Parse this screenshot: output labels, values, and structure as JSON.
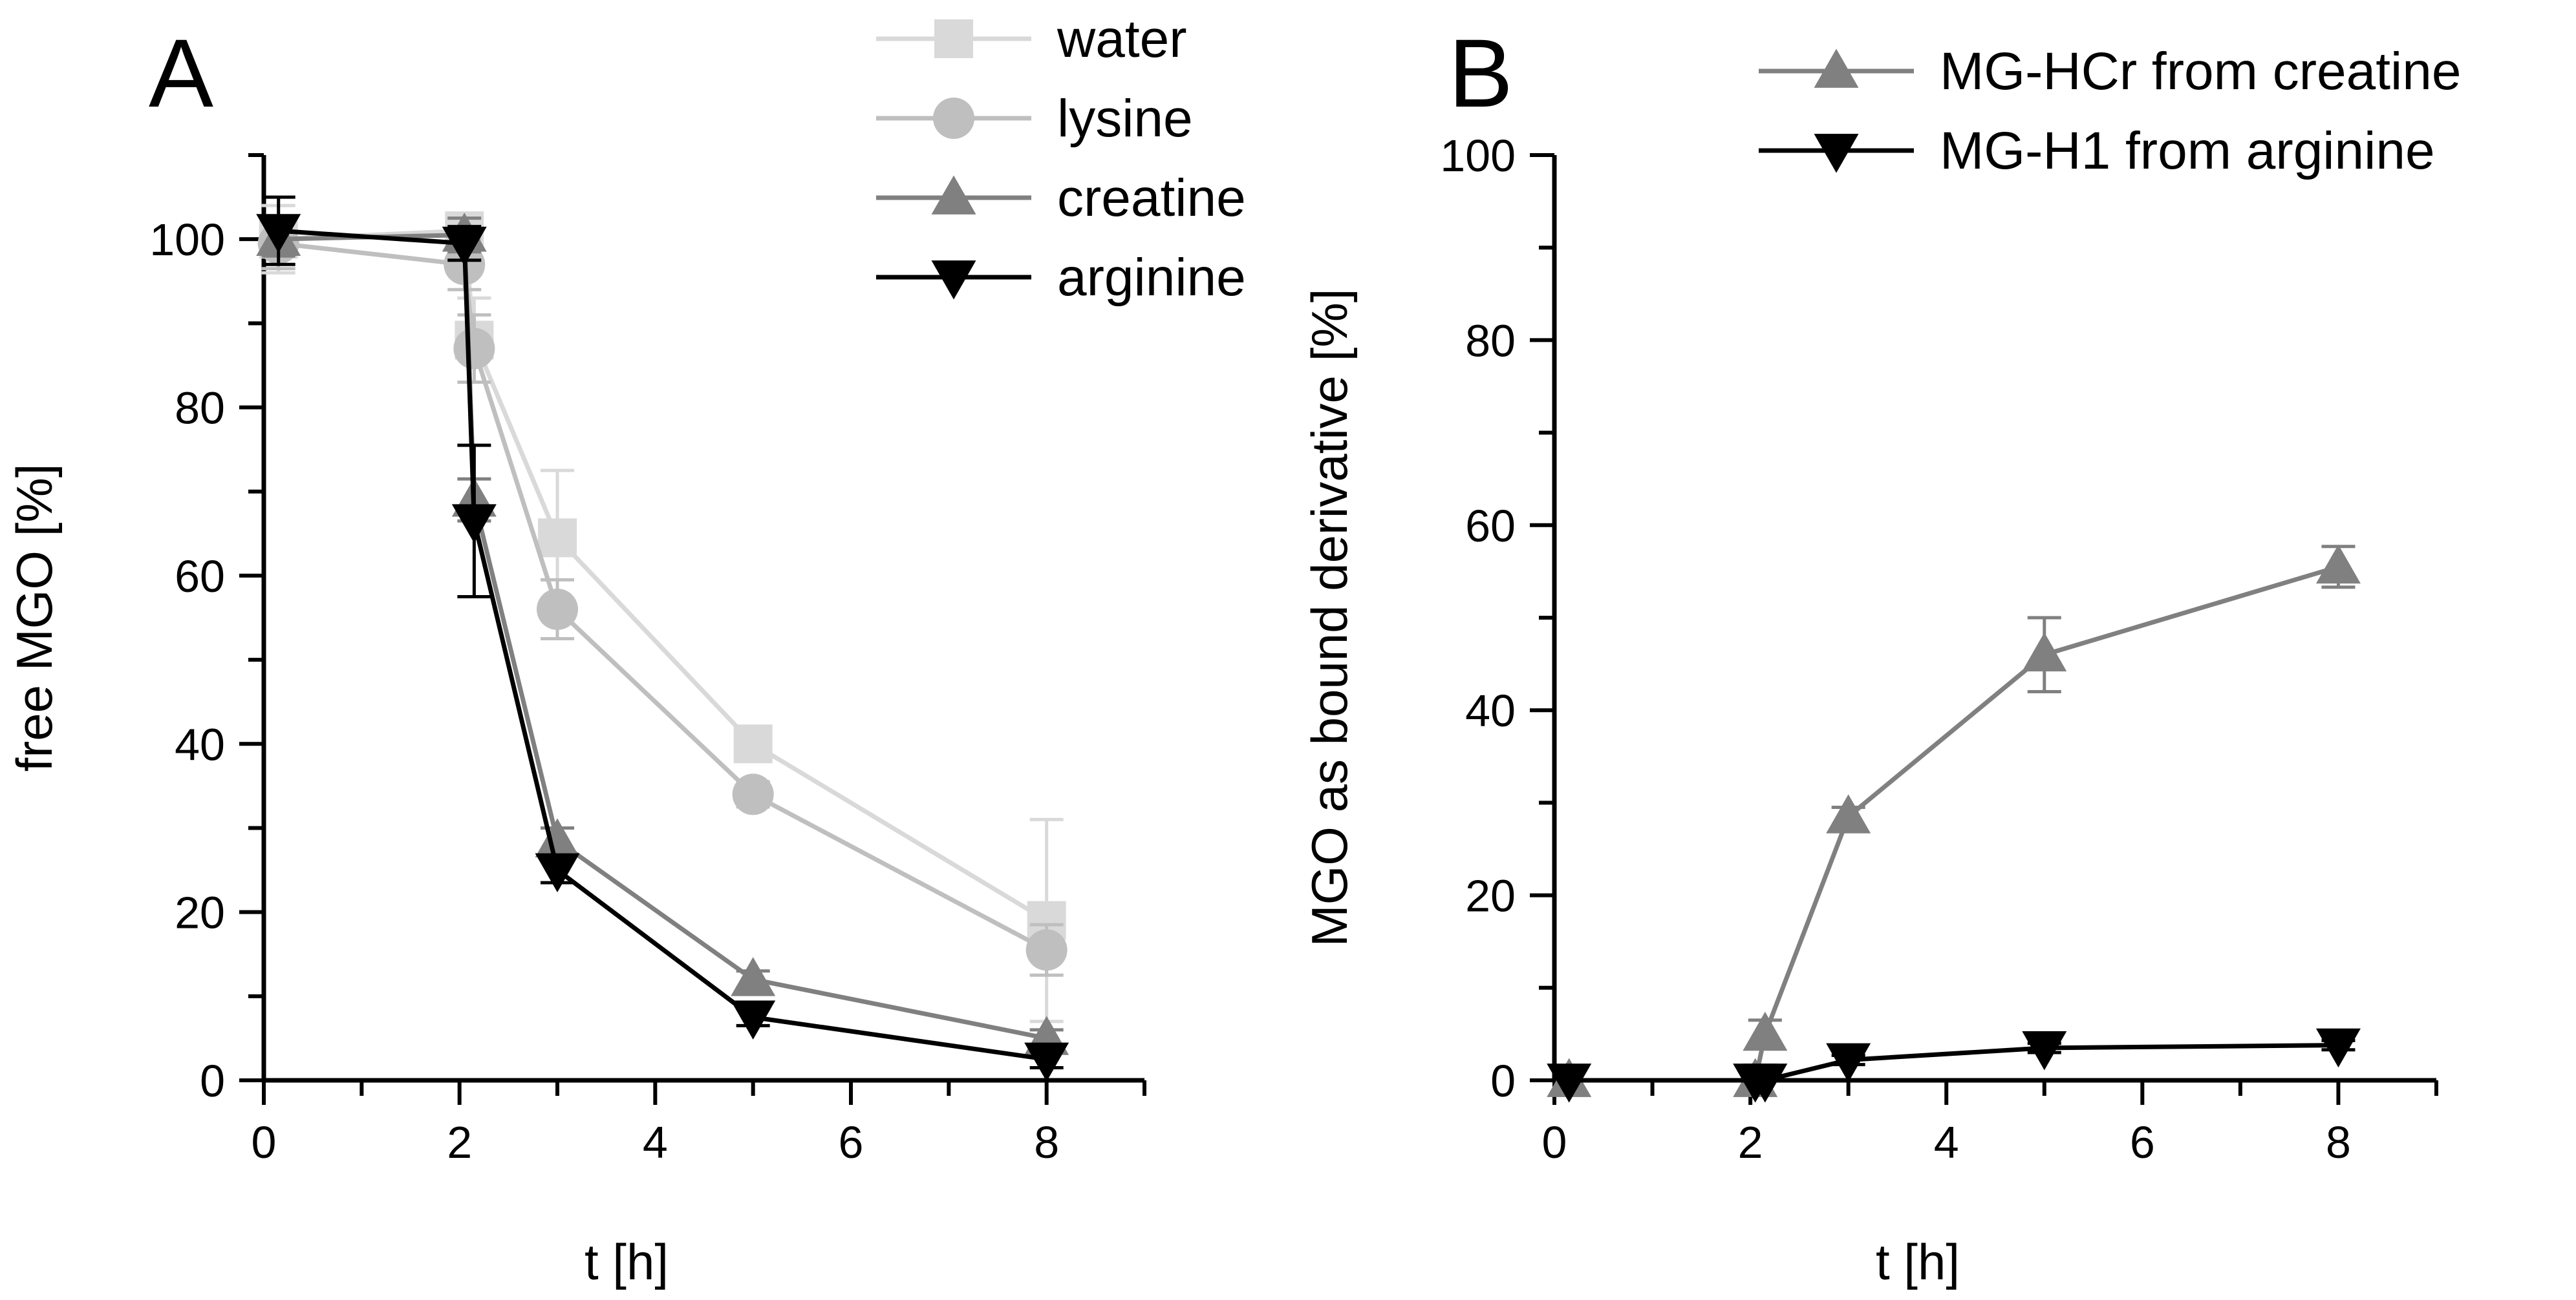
{
  "chart_data": [
    {
      "panel": "A",
      "type": "line",
      "xlabel": "t [h]",
      "ylabel": "free MGO [%]",
      "xlim": [
        0,
        9
      ],
      "ylim": [
        0,
        110
      ],
      "xticks": [
        0,
        2,
        4,
        6,
        8
      ],
      "yticks": [
        0,
        20,
        40,
        60,
        80,
        100
      ],
      "legend_position": "top-right",
      "series": [
        {
          "name": "water",
          "marker": "square",
          "color": "#d9d9d9",
          "x": [
            0.15,
            2.05,
            2.15,
            3,
            5,
            8
          ],
          "y": [
            100,
            101,
            88,
            64.5,
            40,
            19
          ],
          "err": [
            4,
            2,
            5,
            8,
            2,
            12
          ]
        },
        {
          "name": "lysine",
          "marker": "circle",
          "color": "#bfbfbf",
          "x": [
            0.15,
            2.05,
            2.15,
            3,
            5,
            8
          ],
          "y": [
            99.5,
            97,
            87,
            56,
            34,
            15.5
          ],
          "err": [
            3,
            3,
            4,
            3.5,
            1.5,
            3
          ]
        },
        {
          "name": "creatine",
          "marker": "triangle-up",
          "color": "#808080",
          "x": [
            0.15,
            2.05,
            2.15,
            3,
            5,
            8
          ],
          "y": [
            100,
            100.5,
            69,
            28.5,
            12,
            5
          ],
          "err": [
            2,
            2,
            2.5,
            1.5,
            1,
            1
          ]
        },
        {
          "name": "arginine",
          "marker": "triangle-down",
          "color": "#000000",
          "x": [
            0.15,
            2.05,
            2.15,
            3,
            5,
            8
          ],
          "y": [
            101,
            99.5,
            66.5,
            25,
            7.5,
            2.5
          ],
          "err": [
            4,
            2,
            9,
            1.5,
            1,
            1
          ]
        }
      ]
    },
    {
      "panel": "B",
      "type": "line",
      "xlabel": "t [h]",
      "ylabel": "MGO as bound derivative [%]",
      "xlim": [
        0,
        9
      ],
      "ylim": [
        0,
        100
      ],
      "xticks": [
        0,
        2,
        4,
        6,
        8
      ],
      "yticks": [
        0,
        20,
        40,
        60,
        80,
        100
      ],
      "legend_position": "top-right",
      "series": [
        {
          "name": "MG-HCr from creatine",
          "marker": "triangle-up",
          "color": "#808080",
          "x": [
            0.15,
            2.05,
            2.15,
            3,
            5,
            8
          ],
          "y": [
            0,
            0,
            5,
            28.5,
            46,
            55.5
          ],
          "err": [
            0,
            0,
            1.5,
            1,
            4,
            2.2
          ]
        },
        {
          "name": "MG-H1 from arginine",
          "marker": "triangle-down",
          "color": "#000000",
          "x": [
            0.15,
            2.05,
            2.15,
            3,
            5,
            8
          ],
          "y": [
            0,
            0,
            0,
            2.2,
            3.5,
            3.8
          ],
          "err": [
            0,
            0,
            0,
            0.5,
            0.5,
            0.5
          ]
        }
      ]
    }
  ]
}
